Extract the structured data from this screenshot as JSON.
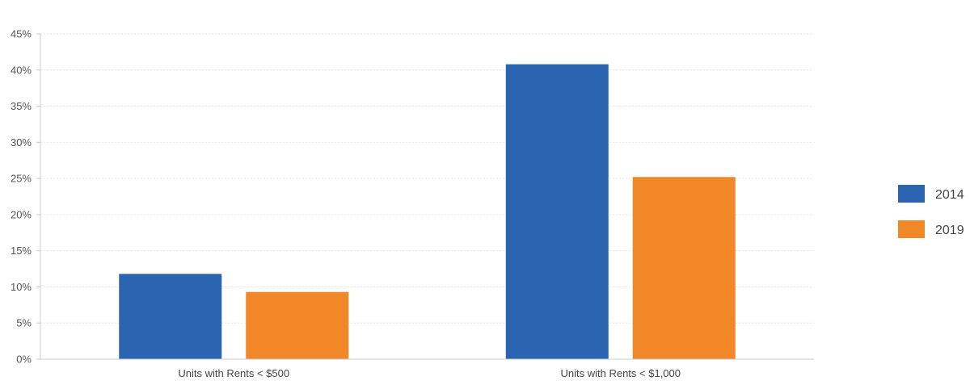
{
  "chart_data": {
    "type": "bar",
    "categories": [
      "Units with Rents < $500",
      "Units with Rents < $1,000"
    ],
    "series": [
      {
        "name": "2014",
        "values": [
          11.8,
          40.8
        ],
        "color": "#2b65b1"
      },
      {
        "name": "2019",
        "values": [
          9.3,
          25.2
        ],
        "color": "#f28727"
      }
    ],
    "ylim": [
      0,
      45
    ],
    "yticks": [
      0,
      5,
      10,
      15,
      20,
      25,
      30,
      35,
      40,
      45
    ],
    "ytick_format": "percent",
    "grid": true,
    "legend_position": "right",
    "title": "",
    "xlabel": "",
    "ylabel": ""
  }
}
